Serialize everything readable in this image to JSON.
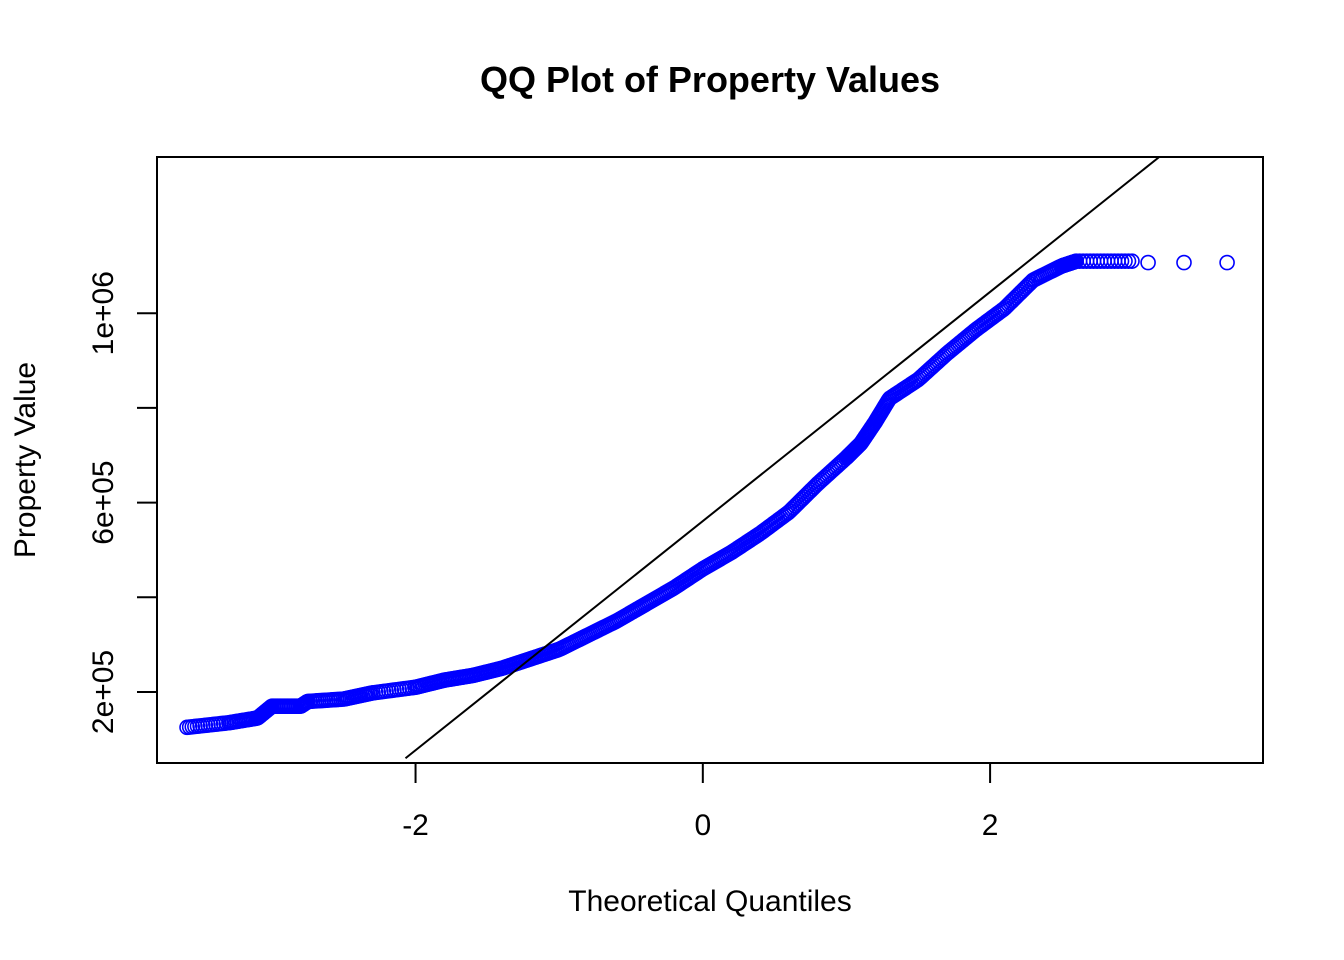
{
  "chart_data": {
    "type": "scatter",
    "title": "QQ Plot of Property Values",
    "xlabel": "Theoretical Quantiles",
    "ylabel": "Property Value",
    "xlim": [
      -3.8,
      3.9
    ],
    "ylim": [
      50000,
      1330000
    ],
    "xticks": [
      {
        "value": -2,
        "label": "-2"
      },
      {
        "value": 0,
        "label": "0"
      },
      {
        "value": 2,
        "label": "2"
      }
    ],
    "yticks": [
      {
        "value": 200000,
        "label": "2e+05"
      },
      {
        "value": 400000,
        "label": ""
      },
      {
        "value": 600000,
        "label": "6e+05"
      },
      {
        "value": 800000,
        "label": ""
      },
      {
        "value": 1000000,
        "label": "1e+06"
      }
    ],
    "grid": false,
    "point_color": "#0000ff",
    "line_color": "#000000",
    "reference_line": {
      "x1": -2.07,
      "y1": 60000,
      "x2": 3.26,
      "y2": 1350000
    },
    "sample_quantile_curve": [
      {
        "x": -3.6,
        "y": 125000
      },
      {
        "x": -3.3,
        "y": 135000
      },
      {
        "x": -3.1,
        "y": 145000
      },
      {
        "x": -3.0,
        "y": 170000
      },
      {
        "x": -2.8,
        "y": 170000
      },
      {
        "x": -2.75,
        "y": 180000
      },
      {
        "x": -2.5,
        "y": 185000
      },
      {
        "x": -2.3,
        "y": 198000
      },
      {
        "x": -2.0,
        "y": 210000
      },
      {
        "x": -1.8,
        "y": 225000
      },
      {
        "x": -1.6,
        "y": 235000
      },
      {
        "x": -1.4,
        "y": 250000
      },
      {
        "x": -1.2,
        "y": 270000
      },
      {
        "x": -1.0,
        "y": 290000
      },
      {
        "x": -0.8,
        "y": 320000
      },
      {
        "x": -0.6,
        "y": 350000
      },
      {
        "x": -0.4,
        "y": 385000
      },
      {
        "x": -0.2,
        "y": 420000
      },
      {
        "x": 0.0,
        "y": 460000
      },
      {
        "x": 0.2,
        "y": 495000
      },
      {
        "x": 0.4,
        "y": 535000
      },
      {
        "x": 0.6,
        "y": 580000
      },
      {
        "x": 0.8,
        "y": 640000
      },
      {
        "x": 1.0,
        "y": 695000
      },
      {
        "x": 1.1,
        "y": 725000
      },
      {
        "x": 1.2,
        "y": 770000
      },
      {
        "x": 1.3,
        "y": 820000
      },
      {
        "x": 1.5,
        "y": 860000
      },
      {
        "x": 1.7,
        "y": 915000
      },
      {
        "x": 1.9,
        "y": 965000
      },
      {
        "x": 2.1,
        "y": 1010000
      },
      {
        "x": 2.3,
        "y": 1070000
      },
      {
        "x": 2.5,
        "y": 1100000
      },
      {
        "x": 2.6,
        "y": 1110000
      },
      {
        "x": 3.0,
        "y": 1110000
      }
    ],
    "outlier_points": [
      {
        "x": 3.1,
        "y": 1107000
      },
      {
        "x": 3.35,
        "y": 1107000
      },
      {
        "x": 3.65,
        "y": 1107000
      }
    ],
    "n_points": 560
  }
}
